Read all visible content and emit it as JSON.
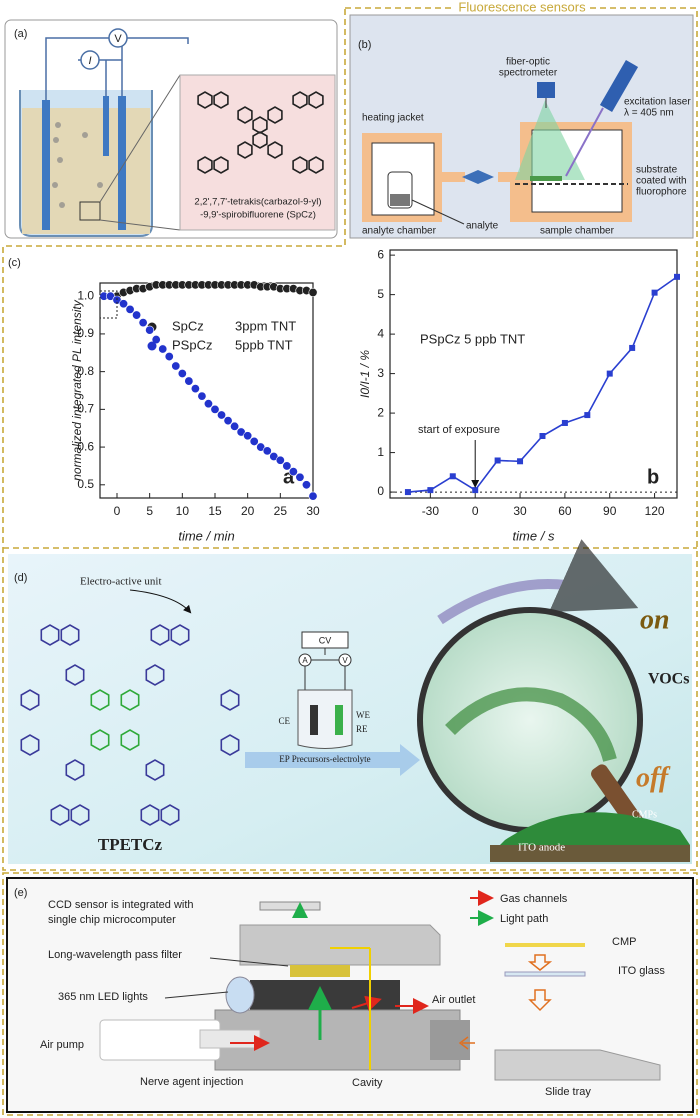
{
  "figure_title": "Fluorescence sensors",
  "panel_a": {
    "label": "(a)",
    "meter_v": "V",
    "meter_i": "I",
    "molecule_name": [
      "2,2',7,7'-tetrakis(carbazol-9-yl)",
      "-9,9'-spirobifluorene (SpCz)"
    ]
  },
  "panel_b": {
    "label": "(b)",
    "spectrometer": [
      "fiber-optic",
      "spectrometer"
    ],
    "laser": [
      "excitation laser",
      "λ = 405 nm"
    ],
    "heating_jacket": "heating jacket",
    "substrate": [
      "substrate",
      "coated with",
      "fluorophore"
    ],
    "analyte": "analyte",
    "analyte_chamber": "analyte chamber",
    "sample_chamber": "sample chamber"
  },
  "panel_c": {
    "label": "(c)"
  },
  "chart_data": [
    {
      "type": "scatter",
      "panel_letter": "a",
      "xlabel": "time / min",
      "ylabel": "normalized integrated PL intensity",
      "x": [
        -2,
        -1,
        0,
        1,
        2,
        3,
        4,
        5,
        6,
        7,
        8,
        9,
        10,
        11,
        12,
        13,
        14,
        15,
        16,
        17,
        18,
        19,
        20,
        21,
        22,
        23,
        24,
        25,
        26,
        27,
        28,
        29,
        30
      ],
      "series": [
        {
          "name": "SpCz",
          "label": "3ppm  TNT",
          "color": "#222222",
          "values": [
            1.0,
            1.0,
            1.0,
            1.01,
            1.015,
            1.02,
            1.02,
            1.025,
            1.03,
            1.03,
            1.03,
            1.03,
            1.03,
            1.03,
            1.03,
            1.03,
            1.03,
            1.03,
            1.03,
            1.03,
            1.03,
            1.03,
            1.03,
            1.03,
            1.025,
            1.025,
            1.025,
            1.02,
            1.02,
            1.02,
            1.015,
            1.015,
            1.01
          ]
        },
        {
          "name": "PSpCz",
          "label": "5ppb  TNT",
          "color": "#2233cc",
          "values": [
            1.0,
            1.0,
            0.99,
            0.98,
            0.965,
            0.95,
            0.93,
            0.91,
            0.885,
            0.86,
            0.84,
            0.815,
            0.795,
            0.775,
            0.755,
            0.735,
            0.715,
            0.7,
            0.685,
            0.67,
            0.655,
            0.64,
            0.63,
            0.615,
            0.6,
            0.59,
            0.575,
            0.565,
            0.55,
            0.535,
            0.52,
            0.5,
            0.47
          ]
        }
      ],
      "xlim": [
        -2.6,
        30
      ],
      "ylim": [
        0.465,
        1.035
      ],
      "xticks": [
        0,
        5,
        10,
        15,
        20,
        25,
        30
      ],
      "yticks": [
        0.5,
        0.6,
        0.7,
        0.8,
        0.9,
        {
          "value": 1,
          "label": "1.0"
        }
      ]
    },
    {
      "type": "line",
      "panel_letter": "b",
      "xlabel": "time / s",
      "ylabel": "I0/I-1 / %",
      "inset_text": "PSpCz 5 ppb TNT",
      "annotation": "start of exposure",
      "x": [
        -45,
        -30,
        -15,
        0,
        15,
        30,
        45,
        60,
        75,
        90,
        105,
        120,
        135
      ],
      "series": [
        {
          "name": "PSpCz",
          "color": "#2a3fd0",
          "values": [
            0,
            0.05,
            0.4,
            0.05,
            0.8,
            0.78,
            1.42,
            1.75,
            1.95,
            3.0,
            3.65,
            5.05,
            5.45
          ]
        }
      ],
      "xlim": [
        -57,
        135
      ],
      "ylim": [
        -0.15,
        6.13
      ],
      "xticks": [
        -30,
        0,
        30,
        60,
        90,
        120
      ],
      "yticks": [
        0,
        1,
        2,
        3,
        4,
        5,
        6
      ]
    }
  ],
  "panel_d": {
    "label": "(d)",
    "unit_label": "Electro-active unit",
    "molecule": "TPETCz",
    "cv": "CV",
    "ammeter": "A",
    "voltmeter": "V",
    "ce": "CE",
    "we": "WE",
    "re": "RE",
    "electrolyte": "EP Precursors-electrolyte",
    "vocs": "VOCs",
    "on": "on",
    "off": "off",
    "ito": "ITO anode",
    "cmps": "CMPs"
  },
  "panel_e": {
    "label": "(e)",
    "ccd": [
      "CCD sensor is integrated with",
      "single chip microcomputer"
    ],
    "filter": "Long-wavelength pass filter",
    "led": "365 nm LED lights",
    "pump": "Air pump",
    "injection": "Nerve agent injection",
    "cavity": "Cavity",
    "outlet": "Air outlet",
    "gas": "Gas channels",
    "light": "Light path",
    "cmp": "CMP",
    "ito": "ITO glass",
    "tray": "Slide tray"
  }
}
